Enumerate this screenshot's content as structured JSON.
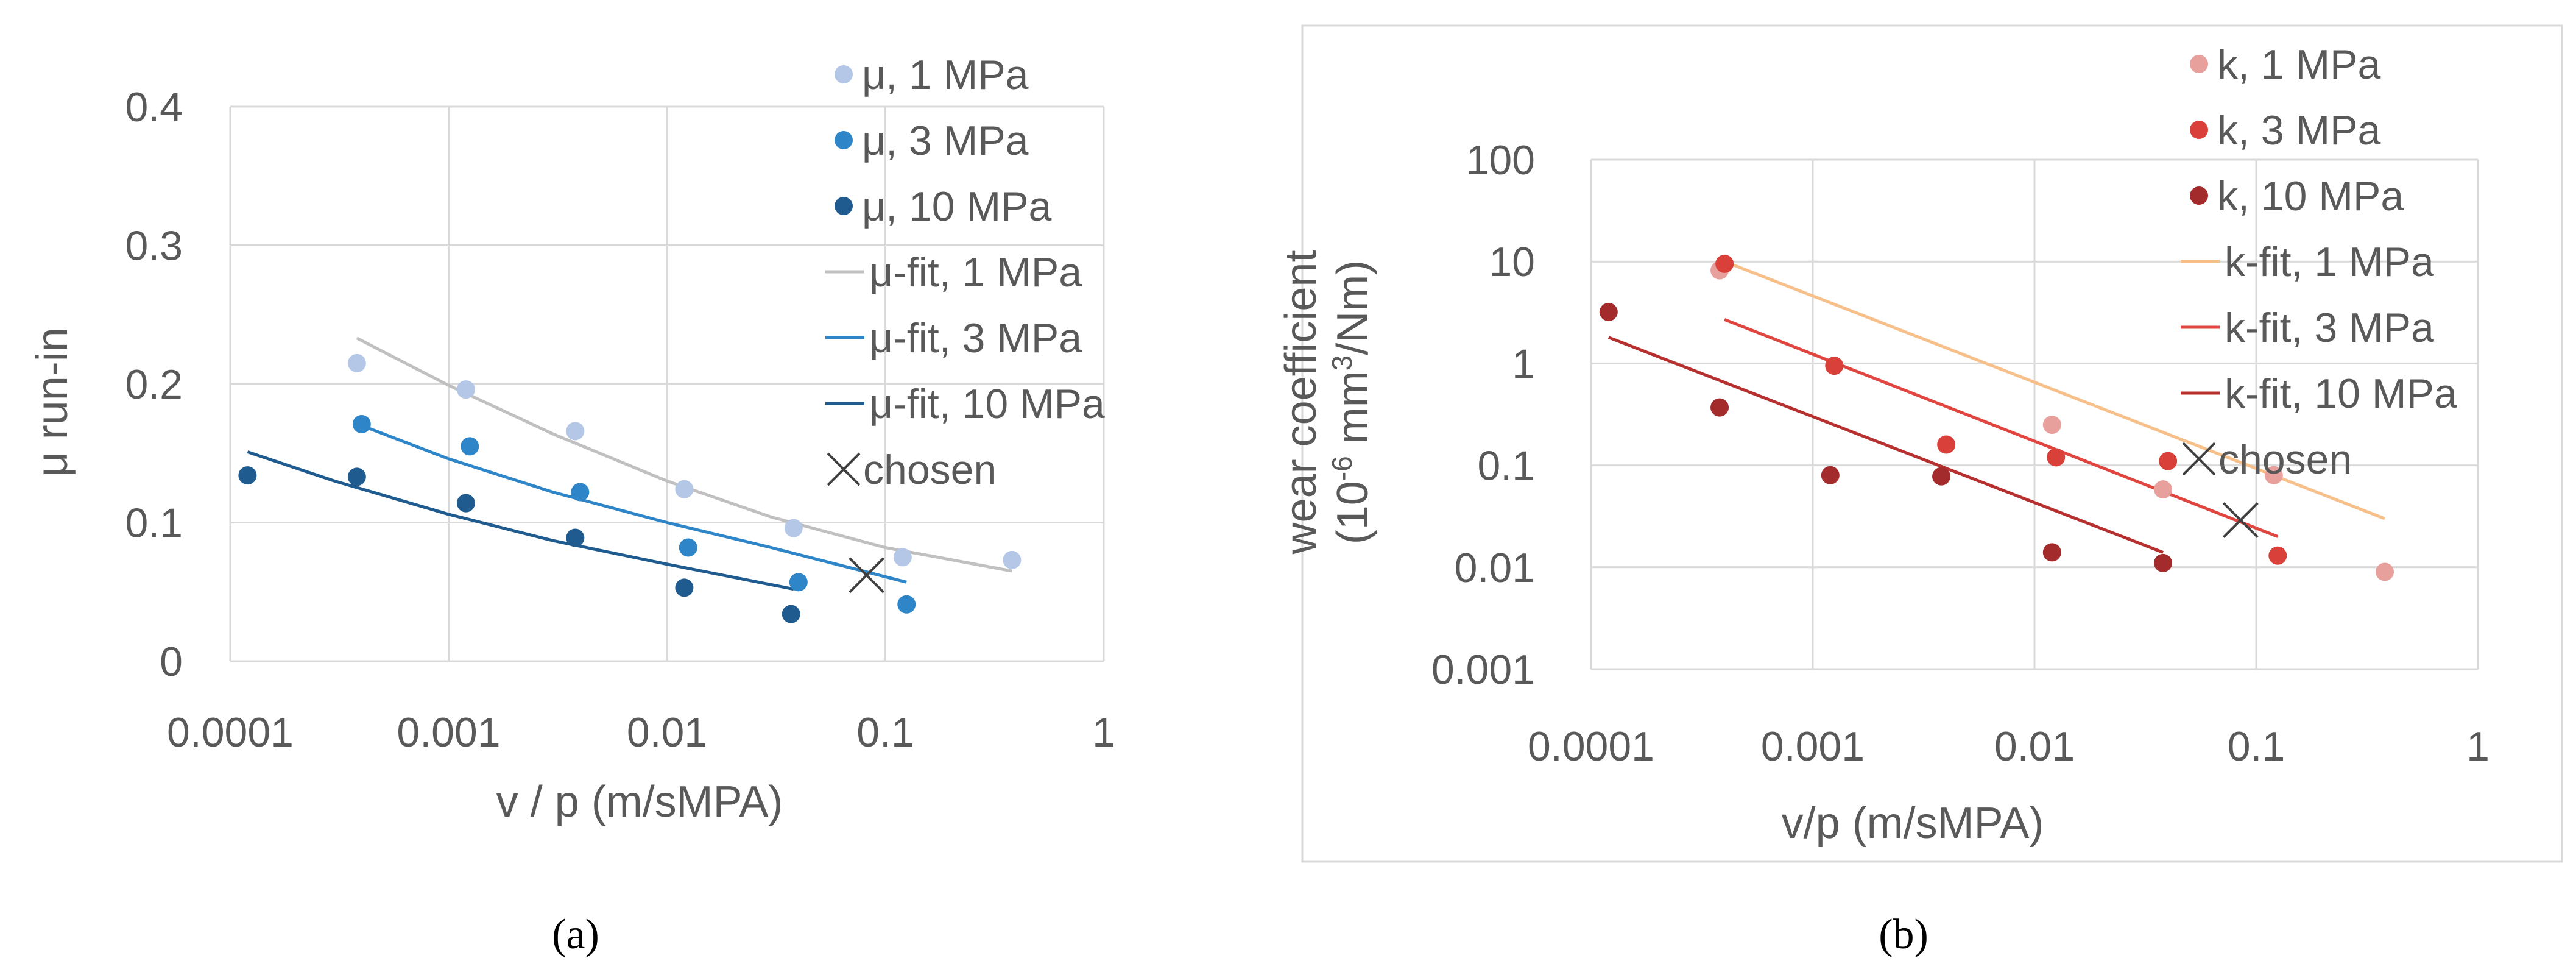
{
  "chart_data": [
    {
      "type": "scatter",
      "panel_label": "(a)",
      "xlabel": "v / p (m/sMPA)",
      "ylabel": "μ run-in",
      "xscale": "log",
      "xlim": [
        0.0001,
        1
      ],
      "ylim": [
        0,
        0.4
      ],
      "xticks": [
        0.0001,
        0.001,
        0.01,
        0.1,
        1
      ],
      "xtick_labels": [
        "0.0001",
        "0.001",
        "0.01",
        "0.1",
        "1"
      ],
      "yticks": [
        0,
        0.1,
        0.2,
        0.3,
        0.4
      ],
      "ytick_labels": [
        "0",
        "0.1",
        "0.2",
        "0.3",
        "0.4"
      ],
      "grid": true,
      "legend_position": "top-right",
      "series": [
        {
          "name": "μ, 1 MPa",
          "kind": "points",
          "color": "#b4c7e7",
          "x": [
            0.00038,
            0.0012,
            0.0038,
            0.012,
            0.038,
            0.12,
            0.38
          ],
          "y": [
            0.215,
            0.196,
            0.166,
            0.124,
            0.096,
            0.075,
            0.073
          ]
        },
        {
          "name": "μ, 3 MPa",
          "kind": "points",
          "color": "#2e86c9",
          "x": [
            0.0004,
            0.00125,
            0.004,
            0.0125,
            0.04,
            0.125
          ],
          "y": [
            0.171,
            0.155,
            0.122,
            0.082,
            0.057,
            0.041
          ]
        },
        {
          "name": "μ, 10 MPa",
          "kind": "points",
          "color": "#1f5b8e",
          "x": [
            0.00012,
            0.00038,
            0.0012,
            0.0038,
            0.012,
            0.037
          ],
          "y": [
            0.134,
            0.133,
            0.114,
            0.089,
            0.053,
            0.034
          ]
        },
        {
          "name": "μ-fit, 1 MPa",
          "kind": "line",
          "color": "#c0c0c0",
          "x": [
            0.00038,
            0.001,
            0.003,
            0.01,
            0.03,
            0.1,
            0.38
          ],
          "y": [
            0.233,
            0.199,
            0.164,
            0.13,
            0.104,
            0.082,
            0.065
          ]
        },
        {
          "name": "μ-fit, 3 MPa",
          "kind": "line",
          "color": "#2e86c9",
          "x": [
            0.0004,
            0.001,
            0.003,
            0.01,
            0.03,
            0.125
          ],
          "y": [
            0.17,
            0.146,
            0.122,
            0.1,
            0.082,
            0.057
          ]
        },
        {
          "name": "μ-fit, 10 MPa",
          "kind": "line",
          "color": "#1f5b8e",
          "x": [
            0.00012,
            0.0003,
            0.001,
            0.003,
            0.01,
            0.038
          ],
          "y": [
            0.151,
            0.13,
            0.106,
            0.087,
            0.07,
            0.052
          ]
        },
        {
          "name": "chosen",
          "kind": "cross",
          "color": "#404040",
          "x": [
            0.082
          ],
          "y": [
            0.062
          ]
        }
      ]
    },
    {
      "type": "scatter",
      "panel_label": "(b)",
      "xlabel": "v/p (m/sMPA)",
      "ylabel_line1": "wear coefficient",
      "ylabel_line2_prefix": "(10",
      "ylabel_line2_exp": "-6",
      "ylabel_line2_mid": " mm",
      "ylabel_line2_exp2": "3",
      "ylabel_line2_suffix": "/Nm)",
      "xscale": "log",
      "yscale": "log",
      "xlim": [
        0.0001,
        1
      ],
      "ylim": [
        0.001,
        100
      ],
      "xticks": [
        0.0001,
        0.001,
        0.01,
        0.1,
        1
      ],
      "xtick_labels": [
        "0.0001",
        "0.001",
        "0.01",
        "0.1",
        "1"
      ],
      "yticks": [
        0.001,
        0.01,
        0.1,
        1,
        10,
        100
      ],
      "ytick_labels": [
        "0.001",
        "0.01",
        "0.1",
        "1",
        "10",
        "100"
      ],
      "grid": true,
      "legend_position": "top-right",
      "series": [
        {
          "name": "k, 1 MPa",
          "kind": "points",
          "color": "#e8a09c",
          "x": [
            0.00038,
            0.012,
            0.038,
            0.12,
            0.38
          ],
          "y": [
            8.2,
            0.25,
            0.058,
            0.08,
            0.009
          ]
        },
        {
          "name": "k, 3 MPa",
          "kind": "points",
          "color": "#d9403a",
          "x": [
            0.0004,
            0.00125,
            0.004,
            0.0125,
            0.04,
            0.125
          ],
          "y": [
            9.5,
            0.95,
            0.16,
            0.12,
            0.11,
            0.013
          ]
        },
        {
          "name": "k, 10 MPa",
          "kind": "points",
          "color": "#a32b2b",
          "x": [
            0.00012,
            0.00038,
            0.0012,
            0.0038,
            0.012,
            0.038
          ],
          "y": [
            3.2,
            0.37,
            0.08,
            0.078,
            0.014,
            0.011
          ]
        },
        {
          "name": "k-fit, 1 MPa",
          "kind": "line",
          "color": "#f7c08a",
          "x": [
            0.0004,
            0.38
          ],
          "y": [
            10,
            0.03
          ]
        },
        {
          "name": "k-fit, 3 MPa",
          "kind": "line",
          "color": "#e0453f",
          "x": [
            0.0004,
            0.125
          ],
          "y": [
            2.7,
            0.02
          ]
        },
        {
          "name": "k-fit, 10 MPa",
          "kind": "line",
          "color": "#b5302f",
          "x": [
            0.00012,
            0.038
          ],
          "y": [
            1.8,
            0.014
          ]
        },
        {
          "name": "chosen",
          "kind": "cross",
          "color": "#404040",
          "x": [
            0.085
          ],
          "y": [
            0.029
          ]
        }
      ]
    }
  ]
}
